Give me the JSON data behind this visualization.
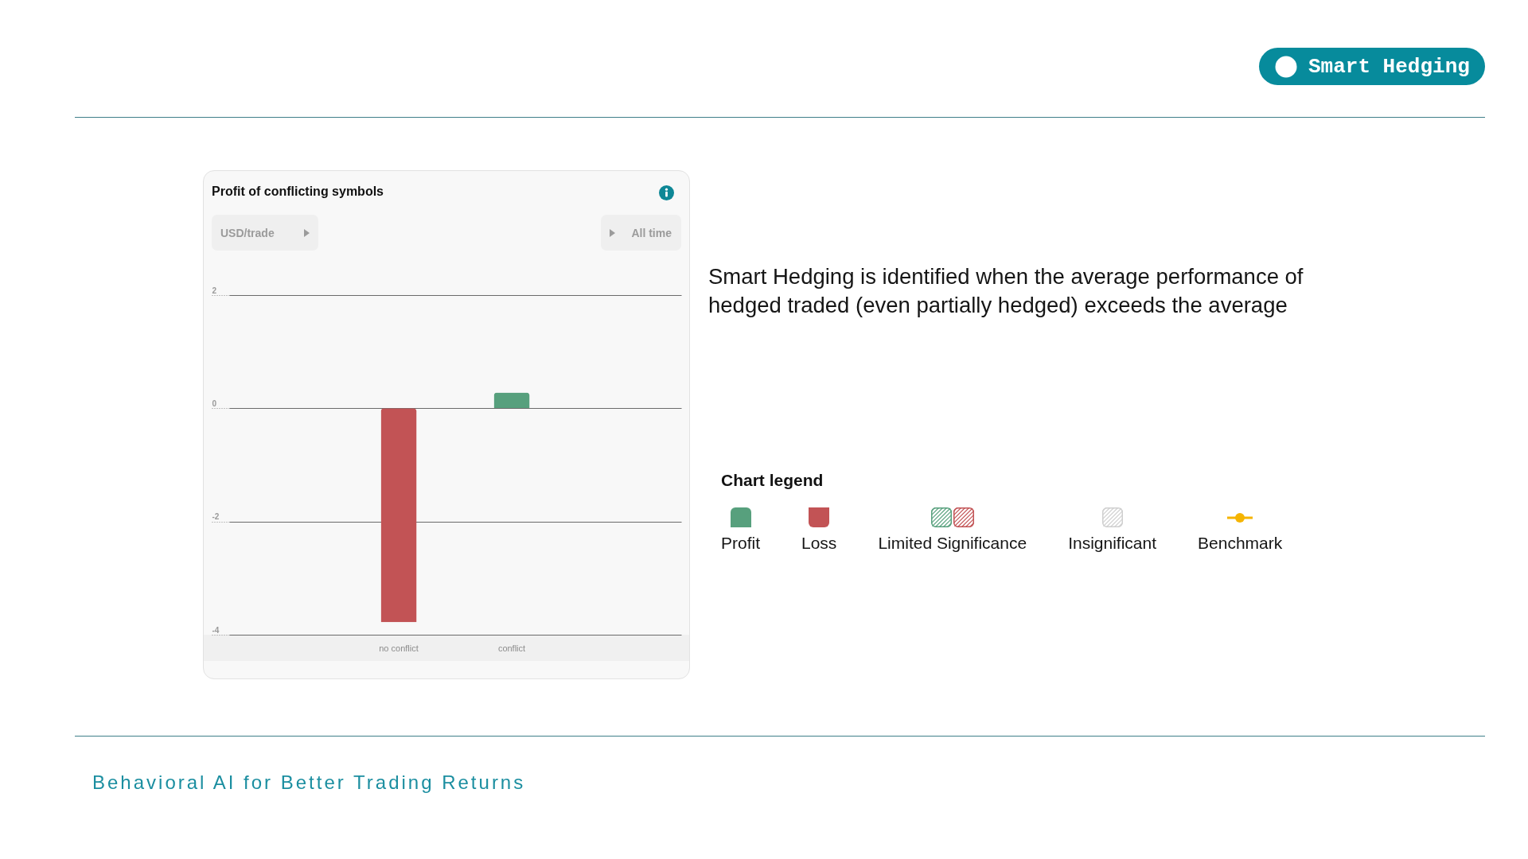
{
  "chart_data": {
    "type": "bar",
    "title": "Profit of conflicting symbols",
    "ylabel": "USD/trade",
    "categories": [
      "no conflict",
      "conflict"
    ],
    "series": [
      {
        "name": "Profit",
        "color": "#57a07d",
        "values": [
          null,
          0.28
        ]
      },
      {
        "name": "Loss",
        "color": "#c25355",
        "values": [
          -3.78,
          null
        ]
      }
    ],
    "stacked": true,
    "ylim": [
      -4,
      2
    ],
    "yticks": [
      -4,
      -2,
      0,
      2
    ],
    "grid": "y",
    "legend": "right",
    "legend_title": "Chart legend",
    "annotations": [
      "All time",
      "Smart Hedging",
      "Smart Hedging is identified when the average performance of hedged traded (even partially hedged) exceeds the average",
      "Limited Significance",
      "Insignificant",
      "Benchmark",
      "Behavioral AI for Better Trading Returns"
    ]
  }
}
